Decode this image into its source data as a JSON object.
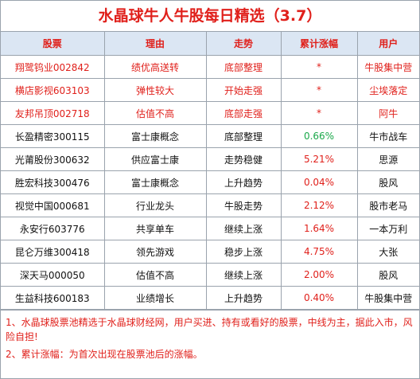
{
  "title": "水晶球牛人牛股每日精选（3.7）",
  "headers": {
    "stock": "股票",
    "reason": "理由",
    "trend": "走势",
    "gain": "累计涨幅",
    "user": "用户"
  },
  "rows": [
    {
      "stock": "翔鹭钨业002842",
      "reason": "绩优高送转",
      "trend": "底部整理",
      "gain": "*",
      "user": "牛股集中营",
      "highlight": true
    },
    {
      "stock": "横店影视603103",
      "reason": "弹性较大",
      "trend": "开始走强",
      "gain": "*",
      "user": "尘埃落定",
      "highlight": true
    },
    {
      "stock": "友邦吊顶002718",
      "reason": "估值不高",
      "trend": "底部走强",
      "gain": "*",
      "user": "阿牛",
      "highlight": true
    },
    {
      "stock": "长盈精密300115",
      "reason": "富士康概念",
      "trend": "底部整理",
      "gain": "0.66%",
      "user": "牛市战车",
      "gain_color": "green"
    },
    {
      "stock": "光莆股份300632",
      "reason": "供应富士康",
      "trend": "走势稳健",
      "gain": "5.21%",
      "user": "思源",
      "gain_color": "red"
    },
    {
      "stock": "胜宏科技300476",
      "reason": "富士康概念",
      "trend": "上升趋势",
      "gain": "0.04%",
      "user": "股风",
      "gain_color": "red"
    },
    {
      "stock": "视觉中国000681",
      "reason": "行业龙头",
      "trend": "牛股走势",
      "gain": "2.12%",
      "user": "股市老马",
      "gain_color": "red"
    },
    {
      "stock": "永安行603776",
      "reason": "共享单车",
      "trend": "继续上涨",
      "gain": "1.64%",
      "user": "一本万利",
      "gain_color": "red"
    },
    {
      "stock": "昆仑万维300418",
      "reason": "领先游戏",
      "trend": "稳步上涨",
      "gain": "4.75%",
      "user": "大张",
      "gain_color": "red"
    },
    {
      "stock": "深天马000050",
      "reason": "估值不高",
      "trend": "继续上涨",
      "gain": "2.00%",
      "user": "股风",
      "gain_color": "red"
    },
    {
      "stock": "生益科技600183",
      "reason": "业绩增长",
      "trend": "上升趋势",
      "gain": "0.40%",
      "user": "牛股集中营",
      "gain_color": "red"
    }
  ],
  "notes": [
    "1、水晶球股票池精选于水晶球财经网，用户买进、持有或看好的股票，中线为主，据此入市，风险自担!",
    "2、累计涨幅：为首次出现在股票池后的涨幅。"
  ],
  "colors": {
    "accent_red": "#e0201b",
    "gain_green": "#1aa84a",
    "header_bg": "#dbe6f3",
    "grid": "#9aa3ad"
  }
}
